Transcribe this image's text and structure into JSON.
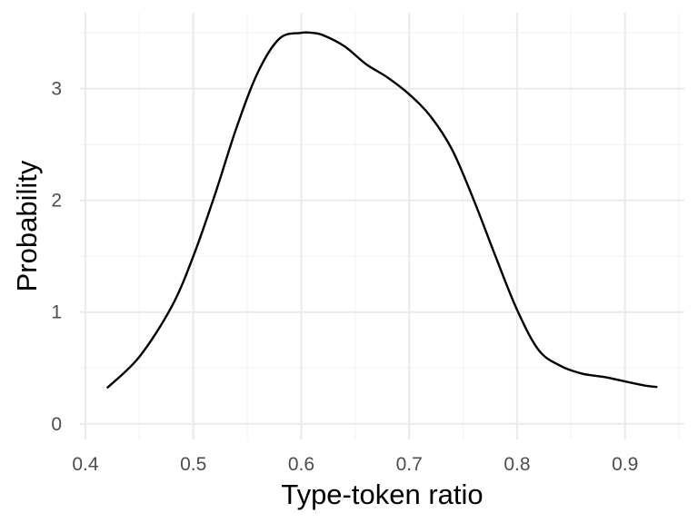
{
  "chart_data": {
    "type": "line",
    "title": "",
    "xlabel": "Type-token ratio",
    "ylabel": "Probability",
    "xlim": [
      0.395,
      0.955
    ],
    "ylim": [
      -0.14,
      3.68
    ],
    "xticks": [
      0.4,
      0.5,
      0.6,
      0.7,
      0.8,
      0.9
    ],
    "xtick_labels": [
      "0.4",
      "0.5",
      "0.6",
      "0.7",
      "0.8",
      "0.9"
    ],
    "yticks": [
      0,
      1,
      2,
      3
    ],
    "ytick_labels": [
      "0",
      "1",
      "2",
      "3"
    ],
    "grid": true,
    "legend": "none",
    "line_color": "#000000",
    "series": [
      {
        "x": [
          0.42,
          0.45,
          0.48,
          0.5,
          0.52,
          0.54,
          0.56,
          0.58,
          0.6,
          0.61,
          0.62,
          0.64,
          0.66,
          0.68,
          0.7,
          0.72,
          0.74,
          0.76,
          0.78,
          0.8,
          0.82,
          0.84,
          0.86,
          0.88,
          0.9,
          0.92,
          0.93
        ],
        "y": [
          0.32,
          0.6,
          1.05,
          1.5,
          2.05,
          2.65,
          3.15,
          3.45,
          3.5,
          3.5,
          3.48,
          3.38,
          3.22,
          3.1,
          2.95,
          2.75,
          2.45,
          2.0,
          1.5,
          1.02,
          0.66,
          0.52,
          0.45,
          0.42,
          0.38,
          0.34,
          0.33
        ]
      }
    ]
  }
}
